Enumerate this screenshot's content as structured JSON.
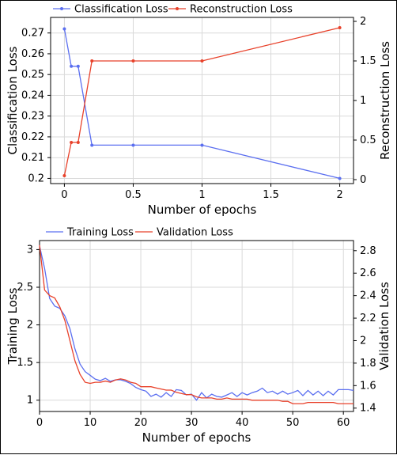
{
  "chart_data": [
    {
      "type": "line",
      "title": "",
      "xlabel": "Number of epochs",
      "ylabel": "Classification Loss",
      "y2label": "Reconstruction Loss",
      "x_ticks": [
        "0",
        "0.5",
        "1",
        "1.5",
        "2"
      ],
      "y_ticks": [
        "0.2",
        "0.21",
        "0.22",
        "0.23",
        "0.24",
        "0.25",
        "0.26",
        "0.27"
      ],
      "y2_ticks": [
        "0",
        "0.5",
        "1",
        "1.5",
        "2"
      ],
      "xlim": [
        -0.1,
        2.1
      ],
      "ylim": [
        0.1975,
        0.2775
      ],
      "y2lim": [
        -0.05,
        2.05
      ],
      "grid": true,
      "legend": "top",
      "series": [
        {
          "name": "Classification Loss",
          "axis": "left",
          "color": "#5b6ff0",
          "x": [
            0,
            0.05,
            0.1,
            0.2,
            0.5,
            1,
            2
          ],
          "values": [
            0.272,
            0.254,
            0.254,
            0.216,
            0.216,
            0.216,
            0.2
          ]
        },
        {
          "name": "Reconstruction Loss",
          "axis": "right",
          "color": "#e8412a",
          "x": [
            0,
            0.05,
            0.1,
            0.2,
            0.5,
            1,
            2
          ],
          "values": [
            0.05,
            0.47,
            0.47,
            1.5,
            1.5,
            1.5,
            1.92
          ]
        }
      ]
    },
    {
      "type": "line",
      "title": "",
      "xlabel": "Number of epochs",
      "ylabel": "Training Loss",
      "y2label": "Validation Loss",
      "x_ticks": [
        "0",
        "10",
        "20",
        "30",
        "40",
        "50",
        "60"
      ],
      "y_ticks": [
        "1",
        "1.5",
        "2",
        "2.5",
        "3"
      ],
      "y2_ticks": [
        "1.4",
        "1.6",
        "1.8",
        "2",
        "2.2",
        "2.4",
        "2.6",
        "2.8"
      ],
      "xlim": [
        0,
        62
      ],
      "ylim": [
        0.85,
        3.12
      ],
      "y2lim": [
        1.37,
        2.89
      ],
      "grid": true,
      "legend": "top",
      "series": [
        {
          "name": "Training Loss",
          "axis": "left",
          "color": "#5b6ff0",
          "x": [
            0,
            1,
            2,
            3,
            4,
            5,
            6,
            7,
            8,
            9,
            10,
            11,
            12,
            13,
            14,
            15,
            16,
            17,
            18,
            19,
            20,
            21,
            22,
            23,
            24,
            25,
            26,
            27,
            28,
            29,
            30,
            31,
            32,
            33,
            34,
            35,
            36,
            37,
            38,
            39,
            40,
            41,
            42,
            43,
            44,
            45,
            46,
            47,
            48,
            49,
            50,
            51,
            52,
            53,
            54,
            55,
            56,
            57,
            58,
            59,
            60,
            61,
            62
          ],
          "values": [
            3.05,
            2.75,
            2.35,
            2.25,
            2.22,
            2.12,
            1.95,
            1.68,
            1.48,
            1.38,
            1.33,
            1.28,
            1.26,
            1.29,
            1.25,
            1.27,
            1.27,
            1.25,
            1.22,
            1.17,
            1.14,
            1.12,
            1.05,
            1.08,
            1.04,
            1.1,
            1.05,
            1.14,
            1.13,
            1.07,
            1.08,
            1.0,
            1.1,
            1.03,
            1.08,
            1.05,
            1.04,
            1.07,
            1.1,
            1.05,
            1.1,
            1.07,
            1.1,
            1.12,
            1.16,
            1.1,
            1.12,
            1.08,
            1.12,
            1.08,
            1.1,
            1.13,
            1.06,
            1.13,
            1.07,
            1.12,
            1.06,
            1.12,
            1.07,
            1.14,
            1.14,
            1.14,
            1.13
          ]
        },
        {
          "name": "Validation Loss",
          "axis": "right",
          "color": "#e8412a",
          "x": [
            0,
            1,
            2,
            3,
            4,
            5,
            6,
            7,
            8,
            9,
            10,
            11,
            12,
            13,
            14,
            15,
            16,
            17,
            18,
            19,
            20,
            21,
            22,
            23,
            24,
            25,
            26,
            27,
            28,
            29,
            30,
            31,
            32,
            33,
            34,
            35,
            36,
            37,
            38,
            39,
            40,
            41,
            42,
            43,
            44,
            45,
            46,
            47,
            48,
            49,
            50,
            51,
            52,
            53,
            54,
            55,
            56,
            57,
            58,
            59,
            60,
            61,
            62
          ],
          "values": [
            2.85,
            2.45,
            2.4,
            2.38,
            2.3,
            2.18,
            2.0,
            1.82,
            1.7,
            1.63,
            1.62,
            1.63,
            1.63,
            1.64,
            1.63,
            1.65,
            1.66,
            1.65,
            1.63,
            1.62,
            1.59,
            1.59,
            1.59,
            1.58,
            1.57,
            1.56,
            1.56,
            1.54,
            1.53,
            1.52,
            1.52,
            1.5,
            1.49,
            1.49,
            1.49,
            1.48,
            1.48,
            1.49,
            1.48,
            1.48,
            1.48,
            1.48,
            1.47,
            1.47,
            1.47,
            1.47,
            1.47,
            1.47,
            1.46,
            1.46,
            1.44,
            1.44,
            1.44,
            1.45,
            1.45,
            1.45,
            1.45,
            1.45,
            1.45,
            1.44,
            1.44,
            1.44,
            1.44
          ]
        }
      ]
    }
  ]
}
